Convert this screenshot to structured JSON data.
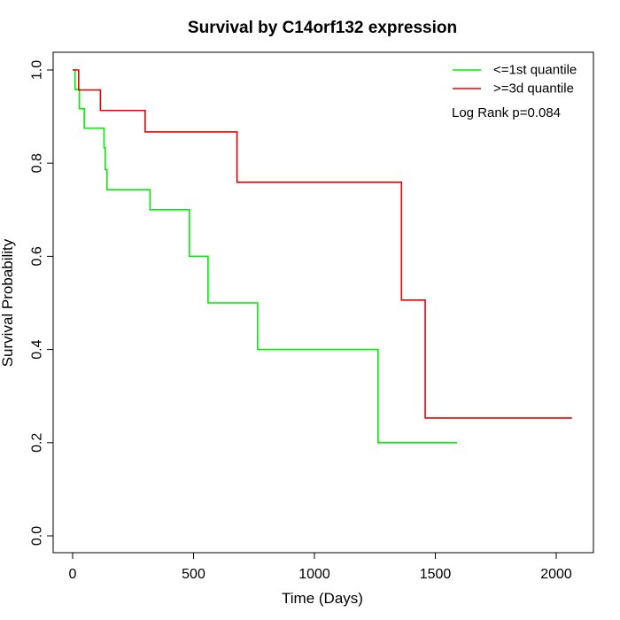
{
  "chart_data": {
    "type": "line",
    "step": true,
    "title": "Survival by C14orf132 expression",
    "xlabel": "Time (Days)",
    "ylabel": "Survival Probability",
    "xlim": [
      0,
      2070
    ],
    "ylim": [
      0,
      1
    ],
    "x_ticks": [
      0,
      500,
      1000,
      1500,
      2000
    ],
    "y_ticks": [
      0.0,
      0.2,
      0.4,
      0.6,
      0.8,
      1.0
    ],
    "x_tick_labels": [
      "0",
      "500",
      "1000",
      "1500",
      "2000"
    ],
    "y_tick_labels": [
      "0.0",
      "0.2",
      "0.4",
      "0.6",
      "0.8",
      "1.0"
    ],
    "grid": false,
    "legend_position": "top-right",
    "annotation": "Log Rank p=0.084",
    "series": [
      {
        "name": "<=1st quantile",
        "color": "#00ee00",
        "x": [
          0,
          10,
          28,
          48,
          130,
          135,
          142,
          320,
          483,
          560,
          765,
          1263,
          1590
        ],
        "y": [
          1.0,
          0.958,
          0.917,
          0.875,
          0.833,
          0.786,
          0.743,
          0.7,
          0.6,
          0.5,
          0.4,
          0.2,
          0.2
        ]
      },
      {
        "name": ">=3d quantile",
        "color": "#ee0000",
        "x": [
          0,
          25,
          115,
          300,
          680,
          1360,
          1458,
          2065
        ],
        "y": [
          1.0,
          0.957,
          0.913,
          0.867,
          0.759,
          0.506,
          0.253,
          0.253
        ]
      }
    ]
  }
}
